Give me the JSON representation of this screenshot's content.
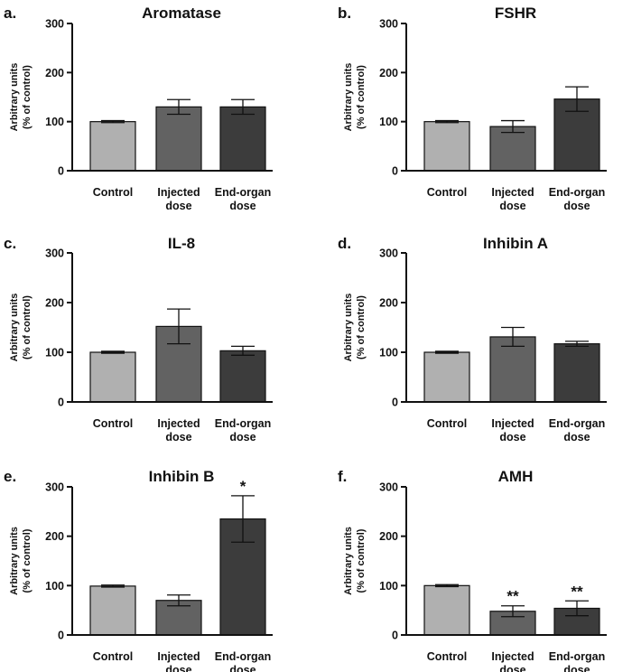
{
  "chart_data": [
    {
      "type": "bar",
      "panel": "a.",
      "title": "Aromatase",
      "ylabel_line1": "Arbitrary units",
      "ylabel_line2": "(% of control)",
      "yticks": [
        0,
        100,
        200,
        300
      ],
      "ylim": [
        0,
        300
      ],
      "categories": [
        [
          "Control"
        ],
        [
          "Injected",
          "dose"
        ],
        [
          "End-organ",
          "dose"
        ]
      ],
      "values": [
        100,
        130,
        130
      ],
      "errors": [
        2,
        15,
        15
      ],
      "bar_colors": [
        "#b0b0b0",
        "#626262",
        "#3c3c3c"
      ],
      "significance": [
        "",
        "",
        ""
      ]
    },
    {
      "type": "bar",
      "panel": "b.",
      "title": "FSHR",
      "ylabel_line1": "Arbitrary units",
      "ylabel_line2": "(% of control)",
      "yticks": [
        0,
        100,
        200,
        300
      ],
      "ylim": [
        0,
        300
      ],
      "categories": [
        [
          "Control"
        ],
        [
          "Injected",
          "dose"
        ],
        [
          "End-organ",
          "dose"
        ]
      ],
      "values": [
        100,
        90,
        146
      ],
      "errors": [
        2,
        12,
        25
      ],
      "bar_colors": [
        "#b0b0b0",
        "#626262",
        "#3c3c3c"
      ],
      "significance": [
        "",
        "",
        ""
      ]
    },
    {
      "type": "bar",
      "panel": "c.",
      "title": "IL-8",
      "ylabel_line1": "Arbitrary units",
      "ylabel_line2": "(% of control)",
      "yticks": [
        0,
        100,
        200,
        300
      ],
      "ylim": [
        0,
        300
      ],
      "categories": [
        [
          "Control"
        ],
        [
          "Injected",
          "dose"
        ],
        [
          "End-organ",
          "dose"
        ]
      ],
      "values": [
        100,
        152,
        103
      ],
      "errors": [
        2,
        35,
        9
      ],
      "bar_colors": [
        "#b0b0b0",
        "#626262",
        "#3c3c3c"
      ],
      "significance": [
        "",
        "",
        ""
      ]
    },
    {
      "type": "bar",
      "panel": "d.",
      "title": "Inhibin A",
      "ylabel_line1": "Arbitrary units",
      "ylabel_line2": "(% of control)",
      "yticks": [
        0,
        100,
        200,
        300
      ],
      "ylim": [
        0,
        300
      ],
      "categories": [
        [
          "Control"
        ],
        [
          "Injected",
          "dose"
        ],
        [
          "End-organ",
          "dose"
        ]
      ],
      "values": [
        100,
        131,
        117
      ],
      "errors": [
        2,
        19,
        5
      ],
      "bar_colors": [
        "#b0b0b0",
        "#626262",
        "#3c3c3c"
      ],
      "significance": [
        "",
        "",
        ""
      ]
    },
    {
      "type": "bar",
      "panel": "e.",
      "title": "Inhibin B",
      "ylabel_line1": "Arbitrary units",
      "ylabel_line2": "(% of control)",
      "yticks": [
        0,
        100,
        200,
        300
      ],
      "ylim": [
        0,
        300
      ],
      "categories": [
        [
          "Control"
        ],
        [
          "Injected",
          "dose"
        ],
        [
          "End-organ",
          "dose"
        ]
      ],
      "values": [
        99,
        70,
        235
      ],
      "errors": [
        2,
        11,
        47
      ],
      "bar_colors": [
        "#b0b0b0",
        "#626262",
        "#3c3c3c"
      ],
      "significance": [
        "",
        "",
        "*"
      ]
    },
    {
      "type": "bar",
      "panel": "f.",
      "title": "AMH",
      "ylabel_line1": "Arbitrary units",
      "ylabel_line2": "(% of control)",
      "yticks": [
        0,
        100,
        200,
        300
      ],
      "ylim": [
        0,
        300
      ],
      "categories": [
        [
          "Control"
        ],
        [
          "Injected",
          "dose"
        ],
        [
          "End-organ",
          "dose"
        ]
      ],
      "values": [
        100,
        48,
        54
      ],
      "errors": [
        2,
        11,
        15
      ],
      "bar_colors": [
        "#b0b0b0",
        "#626262",
        "#3c3c3c"
      ],
      "significance": [
        "",
        "**",
        "**"
      ]
    }
  ]
}
